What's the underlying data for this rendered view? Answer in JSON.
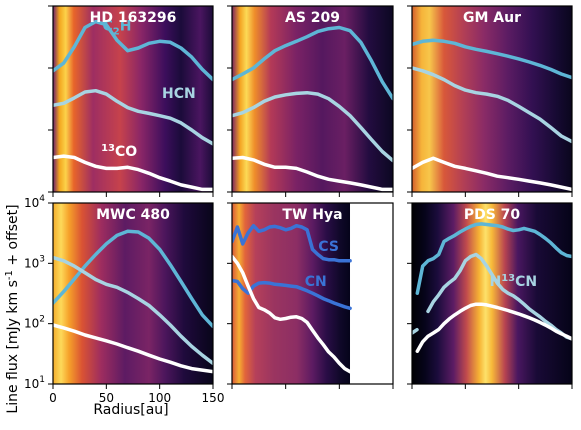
{
  "chart_data": {
    "type": "line",
    "ylabel": "Line flux [mJy km s$^{-1}$ + offset]",
    "xlabel": "Radius[au]",
    "x_ticks": [
      "0",
      "50",
      "100",
      "150"
    ],
    "xlim": [
      0,
      150
    ],
    "y_ticks_bottom": [
      "10^1",
      "10^2",
      "10^3",
      "10^4"
    ],
    "ylim_bottom": [
      10,
      10000
    ],
    "y_scale": "log",
    "colors": {
      "white": "#ffffff",
      "pale": "#a8d4e2",
      "mid": "#5eb6d6",
      "blue": "#3a73d6",
      "magenta": "#c88ad2"
    },
    "panels": [
      {
        "id": "hd163296",
        "title": "HD 163296",
        "annotations": [
          {
            "text": "C",
            "sub": "2",
            "post": "H",
            "color": "mid",
            "x": 60,
            "y": 4000
          },
          {
            "text": "HCN",
            "color": "pale",
            "x": 118,
            "y": 330
          },
          {
            "pre": "13",
            "text": "CO",
            "color": "white",
            "x": 62,
            "y": 38
          }
        ],
        "series": [
          {
            "color": "mid",
            "x": [
              0,
              10,
              20,
              30,
              40,
              50,
              60,
              70,
              80,
              90,
              100,
              110,
              120,
              130,
              140,
              150
            ],
            "y": [
              900,
              1200,
              2200,
              4500,
              5600,
              5000,
              2800,
              1900,
              2100,
              2500,
              2700,
              2600,
              2100,
              1500,
              950,
              650
            ]
          },
          {
            "color": "pale",
            "x": [
              0,
              10,
              20,
              30,
              40,
              50,
              60,
              70,
              80,
              90,
              100,
              110,
              120,
              130,
              140,
              150
            ],
            "y": [
              250,
              270,
              330,
              410,
              430,
              380,
              290,
              230,
              200,
              185,
              170,
              155,
              130,
              100,
              75,
              60
            ]
          },
          {
            "color": "white",
            "x": [
              0,
              10,
              20,
              30,
              40,
              50,
              60,
              70,
              80,
              90,
              100,
              110,
              120,
              130,
              140,
              150
            ],
            "y": [
              36,
              38,
              36,
              30,
              26,
              24,
              24,
              25,
              23,
              20,
              17,
              15,
              13,
              12,
              11,
              11
            ]
          }
        ]
      },
      {
        "id": "as209",
        "title": "AS 209",
        "annotations": [],
        "series": [
          {
            "color": "mid",
            "x": [
              0,
              10,
              20,
              30,
              40,
              50,
              60,
              70,
              80,
              90,
              100,
              110,
              120,
              130,
              140,
              150
            ],
            "y": [
              650,
              800,
              1000,
              1400,
              1900,
              2300,
              2700,
              3200,
              3900,
              4300,
              4500,
              4000,
              2600,
              1300,
              600,
              320
            ]
          },
          {
            "color": "pale",
            "x": [
              0,
              10,
              20,
              30,
              40,
              50,
              60,
              70,
              80,
              90,
              100,
              110,
              120,
              130,
              140,
              150
            ],
            "y": [
              170,
              190,
              230,
              290,
              340,
              370,
              390,
              400,
              380,
              320,
              240,
              170,
              110,
              70,
              45,
              32
            ]
          },
          {
            "color": "white",
            "x": [
              0,
              10,
              20,
              30,
              40,
              50,
              60,
              70,
              80,
              90,
              100,
              110,
              120,
              130,
              140,
              150
            ],
            "y": [
              35,
              36,
              33,
              28,
              25,
              25,
              24,
              21,
              18,
              16,
              15,
              14,
              13,
              12,
              11,
              11
            ]
          }
        ]
      },
      {
        "id": "gmaur",
        "title": "GM Aur",
        "annotations": [],
        "series": [
          {
            "color": "mid",
            "x": [
              0,
              10,
              20,
              30,
              40,
              50,
              60,
              70,
              80,
              90,
              100,
              110,
              120,
              130,
              140,
              150
            ],
            "y": [
              2400,
              2700,
              2800,
              2700,
              2500,
              2200,
              2000,
              1850,
              1700,
              1550,
              1400,
              1250,
              1100,
              950,
              800,
              700
            ]
          },
          {
            "color": "pale",
            "x": [
              0,
              10,
              20,
              30,
              40,
              50,
              60,
              70,
              80,
              90,
              100,
              110,
              120,
              130,
              140,
              150
            ],
            "y": [
              1000,
              900,
              780,
              650,
              520,
              440,
              400,
              380,
              350,
              300,
              240,
              190,
              150,
              110,
              80,
              65
            ]
          },
          {
            "color": "white",
            "x": [
              0,
              10,
              20,
              30,
              40,
              50,
              60,
              70,
              80,
              90,
              100,
              110,
              120,
              130,
              140,
              150
            ],
            "y": [
              24,
              30,
              35,
              30,
              26,
              24,
              22,
              20,
              18,
              17,
              16,
              15,
              14,
              13,
              12,
              11
            ]
          }
        ]
      },
      {
        "id": "mwc480",
        "title": "MWC 480",
        "annotations": [],
        "series": [
          {
            "color": "mid",
            "x": [
              0,
              10,
              20,
              30,
              40,
              50,
              60,
              70,
              80,
              90,
              100,
              110,
              120,
              130,
              140,
              150
            ],
            "y": [
              220,
              340,
              550,
              900,
              1400,
              2100,
              2900,
              3400,
              3300,
              2600,
              1700,
              950,
              500,
              260,
              140,
              90
            ]
          },
          {
            "color": "pale",
            "x": [
              0,
              10,
              20,
              30,
              40,
              50,
              60,
              70,
              80,
              90,
              100,
              110,
              120,
              130,
              140,
              150
            ],
            "y": [
              1250,
              1100,
              900,
              700,
              540,
              450,
              400,
              330,
              260,
              200,
              140,
              95,
              62,
              42,
              30,
              22
            ]
          },
          {
            "color": "white",
            "x": [
              0,
              10,
              20,
              30,
              40,
              50,
              60,
              70,
              80,
              90,
              100,
              110,
              120,
              130,
              140,
              150
            ],
            "y": [
              95,
              85,
              75,
              65,
              58,
              52,
              46,
              40,
              35,
              30,
              26,
              23,
              20,
              18,
              17,
              16
            ]
          }
        ]
      },
      {
        "id": "twhya",
        "title": "TW Hya",
        "xmax": 110,
        "annotations": [
          {
            "text": "CS",
            "color": "blue",
            "x": 90,
            "y": 1600
          },
          {
            "text": "CN",
            "color": "blue",
            "x": 78,
            "y": 420
          }
        ],
        "series": [
          {
            "color": "blue",
            "x": [
              0,
              5,
              10,
              15,
              20,
              25,
              30,
              35,
              40,
              45,
              50,
              55,
              60,
              65,
              70,
              75,
              80,
              85,
              90,
              95,
              100,
              105,
              110
            ],
            "y": [
              2300,
              4000,
              2100,
              3200,
              4200,
              3400,
              3600,
              4000,
              4100,
              3900,
              3600,
              3800,
              4200,
              4000,
              3600,
              1700,
              1400,
              1200,
              1150,
              1150,
              1100,
              1100,
              1100
            ]
          },
          {
            "color": "blue",
            "x": [
              0,
              5,
              10,
              15,
              20,
              25,
              30,
              35,
              40,
              45,
              50,
              55,
              60,
              65,
              70,
              75,
              80,
              85,
              90,
              95,
              100,
              105,
              110
            ],
            "y": [
              520,
              500,
              380,
              320,
              420,
              470,
              480,
              470,
              450,
              440,
              430,
              420,
              410,
              380,
              350,
              320,
              290,
              260,
              240,
              220,
              205,
              190,
              180
            ]
          },
          {
            "color": "white",
            "x": [
              0,
              5,
              10,
              15,
              20,
              25,
              30,
              35,
              40,
              45,
              50,
              55,
              60,
              65,
              70,
              75,
              80,
              85,
              90,
              95,
              100,
              105,
              110
            ],
            "y": [
              1300,
              1000,
              700,
              420,
              260,
              185,
              170,
              150,
              125,
              118,
              122,
              128,
              130,
              122,
              105,
              78,
              58,
              45,
              34,
              28,
              22,
              18,
              16
            ]
          }
        ]
      },
      {
        "id": "pds70",
        "title": "PDS 70",
        "annotations": [
          {
            "text": "H",
            "sup": "13",
            "post": "CN",
            "color": "pale",
            "x": 95,
            "y": 420
          }
        ],
        "series": [
          {
            "color": "mid",
            "x": [
              5,
              10,
              15,
              20,
              25,
              30,
              35,
              40,
              45,
              50,
              55,
              60,
              65,
              70,
              75,
              80,
              85,
              90,
              95,
              100,
              105,
              110,
              115,
              120,
              125,
              130,
              135,
              140,
              145,
              150
            ],
            "y": [
              320,
              900,
              1100,
              1200,
              1400,
              2300,
              2600,
              2900,
              3300,
              3700,
              4100,
              4400,
              4500,
              4400,
              4300,
              4200,
              4000,
              3700,
              3500,
              3600,
              3800,
              3600,
              3400,
              3000,
              2600,
              2200,
              1800,
              1500,
              1350,
              1300
            ]
          },
          {
            "color": "pale",
            "x": [
              15,
              20,
              25,
              30,
              35,
              40,
              45,
              50,
              55,
              60,
              65,
              70,
              75,
              80,
              85,
              90,
              95,
              100,
              105,
              110,
              115,
              120,
              125,
              130,
              135,
              140,
              145,
              150
            ],
            "y": [
              160,
              230,
              300,
              400,
              480,
              560,
              750,
              1100,
              1300,
              1400,
              1200,
              900,
              650,
              470,
              370,
              320,
              290,
              250,
              210,
              175,
              150,
              130,
              110,
              95,
              80,
              70,
              60,
              56
            ]
          },
          {
            "color": "pale",
            "dash": true,
            "x": [
              0,
              5
            ],
            "y": [
              70,
              80
            ]
          },
          {
            "color": "white",
            "x": [
              5,
              10,
              15,
              20,
              25,
              30,
              35,
              40,
              45,
              50,
              55,
              60,
              65,
              70,
              75,
              80,
              85,
              90,
              95,
              100,
              105,
              110,
              115,
              120,
              125,
              130,
              135,
              140,
              145,
              150
            ],
            "y": [
              35,
              50,
              62,
              70,
              80,
              100,
              120,
              140,
              160,
              180,
              200,
              210,
              210,
              205,
              195,
              185,
              175,
              165,
              155,
              145,
              135,
              125,
              115,
              105,
              95,
              85,
              75,
              68,
              62,
              56
            ]
          }
        ]
      }
    ]
  }
}
